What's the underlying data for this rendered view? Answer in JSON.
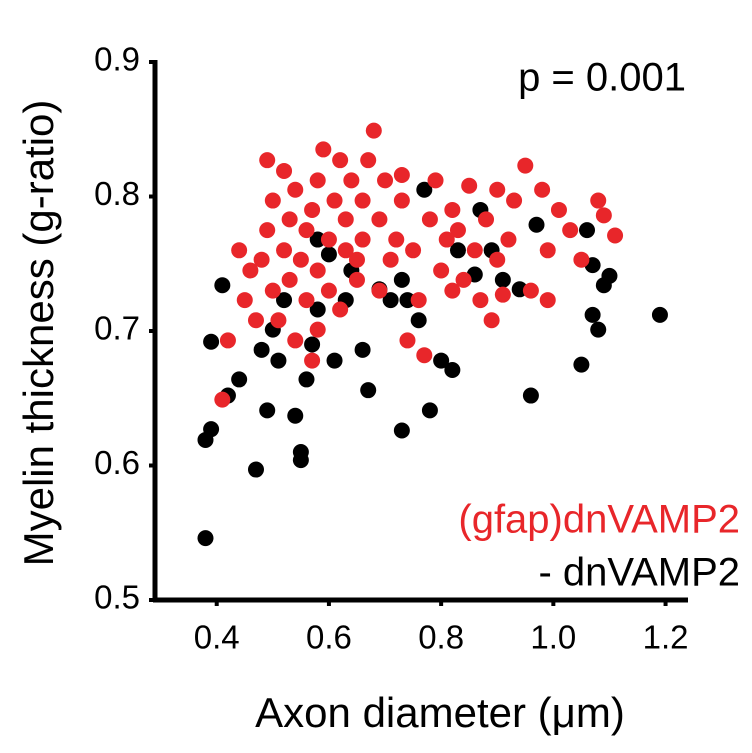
{
  "chart_data": {
    "type": "scatter",
    "xlabel": "Axon diameter (μm)",
    "ylabel": "Myelin thickness (g-ratio)",
    "annotation": "p = 0.001",
    "xlim": [
      0.29,
      1.24
    ],
    "ylim": [
      0.5,
      0.9
    ],
    "xticks": [
      0.4,
      0.6,
      0.8,
      {
        "value": 1,
        "label": "1.0"
      },
      1.2
    ],
    "yticks": [
      0.5,
      0.6,
      0.7,
      0.8,
      0.9
    ],
    "series": [
      {
        "name": "(gfap)dnVAMP2",
        "color": "#e8262a",
        "x": [
          0.41,
          0.42,
          0.44,
          0.45,
          0.46,
          0.47,
          0.48,
          0.49,
          0.49,
          0.5,
          0.5,
          0.51,
          0.52,
          0.52,
          0.53,
          0.53,
          0.54,
          0.54,
          0.55,
          0.56,
          0.56,
          0.57,
          0.57,
          0.58,
          0.58,
          0.58,
          0.59,
          0.6,
          0.6,
          0.61,
          0.62,
          0.62,
          0.63,
          0.63,
          0.64,
          0.65,
          0.65,
          0.66,
          0.66,
          0.67,
          0.68,
          0.69,
          0.69,
          0.7,
          0.71,
          0.72,
          0.73,
          0.73,
          0.74,
          0.75,
          0.76,
          0.77,
          0.78,
          0.79,
          0.8,
          0.81,
          0.82,
          0.82,
          0.83,
          0.84,
          0.85,
          0.86,
          0.87,
          0.88,
          0.89,
          0.9,
          0.9,
          0.91,
          0.92,
          0.93,
          0.95,
          0.96,
          0.98,
          0.99,
          0.99,
          1.01,
          1.03,
          1.05,
          1.08,
          1.09,
          1.11
        ],
        "y": [
          0.649,
          0.693,
          0.76,
          0.723,
          0.745,
          0.708,
          0.753,
          0.827,
          0.775,
          0.73,
          0.797,
          0.708,
          0.76,
          0.819,
          0.738,
          0.783,
          0.693,
          0.805,
          0.753,
          0.723,
          0.775,
          0.79,
          0.678,
          0.745,
          0.812,
          0.701,
          0.835,
          0.768,
          0.73,
          0.797,
          0.716,
          0.827,
          0.76,
          0.783,
          0.812,
          0.738,
          0.753,
          0.797,
          0.768,
          0.827,
          0.849,
          0.73,
          0.783,
          0.812,
          0.753,
          0.768,
          0.797,
          0.816,
          0.693,
          0.76,
          0.723,
          0.682,
          0.783,
          0.812,
          0.745,
          0.768,
          0.73,
          0.79,
          0.775,
          0.738,
          0.808,
          0.76,
          0.723,
          0.783,
          0.708,
          0.805,
          0.753,
          0.727,
          0.768,
          0.797,
          0.823,
          0.73,
          0.805,
          0.723,
          0.76,
          0.79,
          0.775,
          0.753,
          0.797,
          0.786,
          0.771
        ]
      },
      {
        "name": "- dnVAMP2",
        "color": "#000000",
        "x": [
          0.38,
          0.38,
          0.39,
          0.39,
          0.41,
          0.42,
          0.44,
          0.47,
          0.48,
          0.49,
          0.5,
          0.51,
          0.52,
          0.54,
          0.55,
          0.55,
          0.56,
          0.57,
          0.58,
          0.58,
          0.6,
          0.61,
          0.63,
          0.64,
          0.66,
          0.67,
          0.69,
          0.71,
          0.73,
          0.73,
          0.74,
          0.76,
          0.78,
          0.77,
          0.8,
          0.82,
          0.83,
          0.87,
          0.89,
          0.94,
          0.96,
          0.97,
          1.05,
          1.06,
          1.07,
          1.07,
          1.08,
          1.09,
          1.1,
          1.19,
          0.91,
          0.86
        ],
        "y": [
          0.546,
          0.619,
          0.627,
          0.692,
          0.734,
          0.652,
          0.664,
          0.597,
          0.686,
          0.641,
          0.701,
          0.678,
          0.723,
          0.637,
          0.61,
          0.604,
          0.664,
          0.69,
          0.716,
          0.768,
          0.757,
          0.678,
          0.723,
          0.745,
          0.686,
          0.656,
          0.731,
          0.723,
          0.626,
          0.738,
          0.723,
          0.708,
          0.641,
          0.805,
          0.678,
          0.671,
          0.76,
          0.79,
          0.76,
          0.731,
          0.652,
          0.779,
          0.675,
          0.775,
          0.749,
          0.712,
          0.701,
          0.734,
          0.741,
          0.712,
          0.738,
          0.742
        ]
      }
    ]
  }
}
